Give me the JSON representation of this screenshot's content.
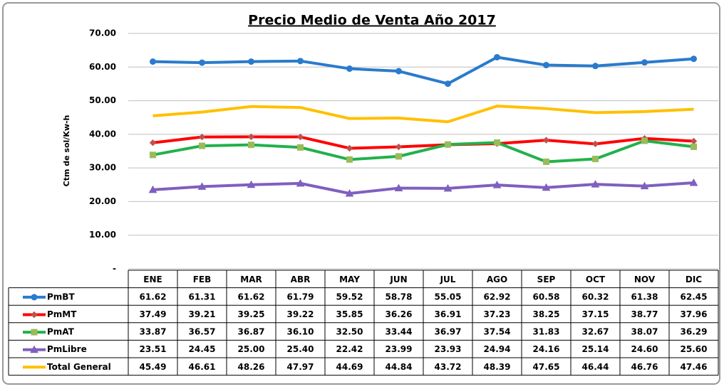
{
  "chart_data": {
    "type": "line",
    "title": "Precio Medio de Venta Año 2017",
    "y_label": "Ctm de sol/Kw-h",
    "categories": [
      "ENE",
      "FEB",
      "MAR",
      "ABR",
      "MAY",
      "JUN",
      "JUL",
      "AGO",
      "SEP",
      "OCT",
      "NOV",
      "DIC"
    ],
    "ylim": [
      0,
      70
    ],
    "yticks": [
      {
        "value": 0,
        "label": "-"
      },
      {
        "value": 10,
        "label": "10.00"
      },
      {
        "value": 20,
        "label": "20.00"
      },
      {
        "value": 30,
        "label": "30.00"
      },
      {
        "value": 40,
        "label": "40.00"
      },
      {
        "value": 50,
        "label": "50.00"
      },
      {
        "value": 60,
        "label": "60.00"
      },
      {
        "value": 70,
        "label": "70.00"
      }
    ],
    "grid": true,
    "series": [
      {
        "name": "PmBT",
        "color": "#2a7bcc",
        "marker": "circle",
        "values": [
          61.62,
          61.31,
          61.62,
          61.79,
          59.52,
          58.78,
          55.05,
          62.92,
          60.58,
          60.32,
          61.38,
          62.45
        ],
        "value_labels": [
          "61.62",
          "61.31",
          "61.62",
          "61.79",
          "59.52",
          "58.78",
          "55.05",
          "62.92",
          "60.58",
          "60.32",
          "61.38",
          "62.45"
        ]
      },
      {
        "name": "PmMT",
        "color": "#ff0000",
        "marker": "diamond",
        "values": [
          37.49,
          39.21,
          39.25,
          39.22,
          35.85,
          36.26,
          36.91,
          37.23,
          38.25,
          37.15,
          38.77,
          37.96
        ],
        "value_labels": [
          "37.49",
          "39.21",
          "39.25",
          "39.22",
          "35.85",
          "36.26",
          "36.91",
          "37.23",
          "38.25",
          "37.15",
          "38.77",
          "37.96"
        ]
      },
      {
        "name": "PmAT",
        "color": "#22b14c",
        "marker": "square",
        "values": [
          33.87,
          36.57,
          36.87,
          36.1,
          32.5,
          33.44,
          36.97,
          37.54,
          31.83,
          32.67,
          38.07,
          36.29
        ],
        "value_labels": [
          "33.87",
          "36.57",
          "36.87",
          "36.10",
          "32.50",
          "33.44",
          "36.97",
          "37.54",
          "31.83",
          "32.67",
          "38.07",
          "36.29"
        ]
      },
      {
        "name": "PmLibre",
        "color": "#7f5fbf",
        "marker": "triangle",
        "values": [
          23.51,
          24.45,
          25.0,
          25.4,
          22.42,
          23.99,
          23.93,
          24.94,
          24.16,
          25.14,
          24.6,
          25.6
        ],
        "value_labels": [
          "23.51",
          "24.45",
          "25.00",
          "25.40",
          "22.42",
          "23.99",
          "23.93",
          "24.94",
          "24.16",
          "25.14",
          "24.60",
          "25.60"
        ]
      },
      {
        "name": "Total General",
        "color": "#ffc000",
        "marker": "none",
        "values": [
          45.49,
          46.61,
          48.26,
          47.97,
          44.69,
          44.84,
          43.72,
          48.39,
          47.65,
          46.44,
          46.76,
          47.46
        ],
        "value_labels": [
          "45.49",
          "46.61",
          "48.26",
          "47.97",
          "44.69",
          "44.84",
          "43.72",
          "48.39",
          "47.65",
          "46.44",
          "46.76",
          "47.46"
        ]
      }
    ]
  }
}
